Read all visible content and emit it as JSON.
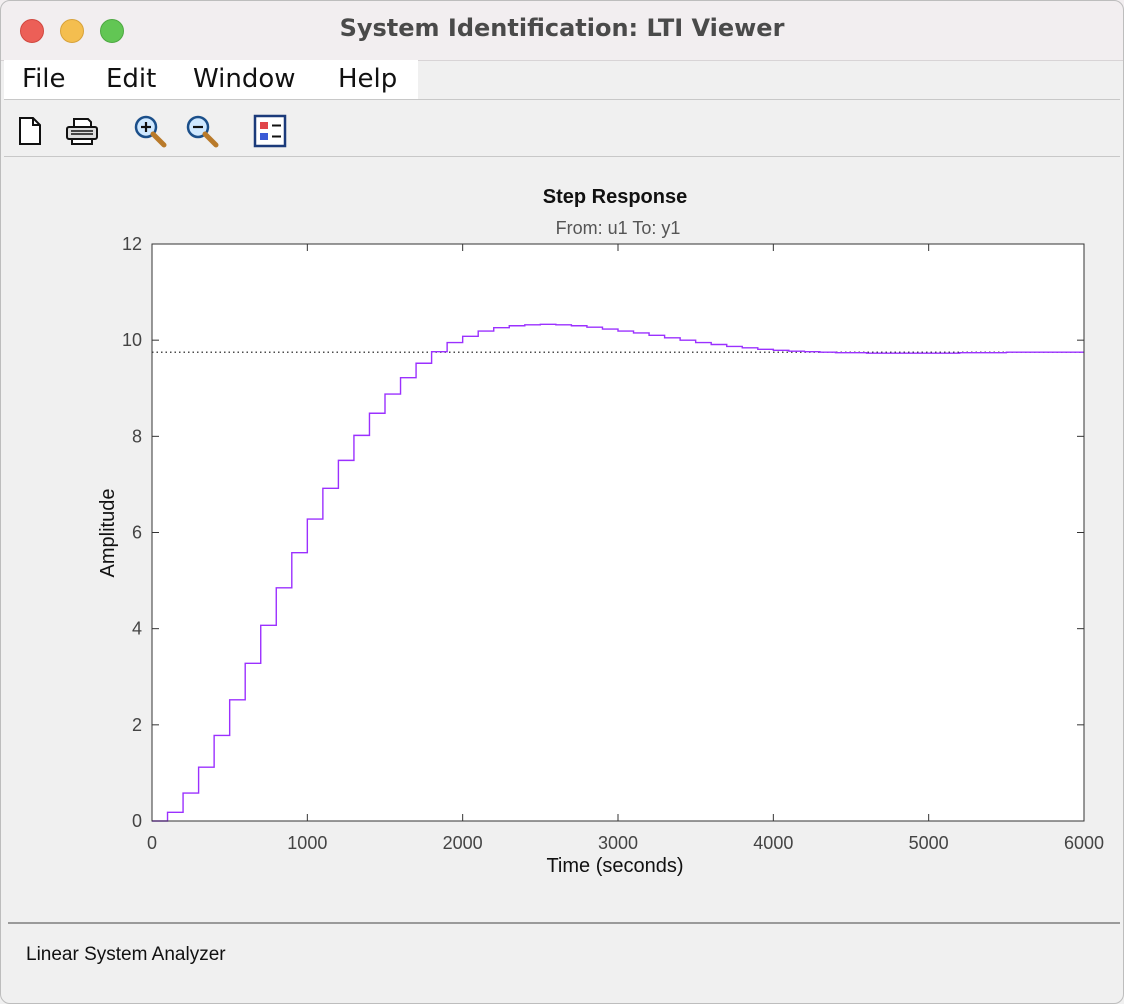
{
  "window": {
    "title": "System Identification: LTI Viewer"
  },
  "menu": {
    "file": "File",
    "edit": "Edit",
    "window": "Window",
    "help": "Help"
  },
  "toolbar": {
    "icons": [
      "new-document-icon",
      "print-icon",
      "zoom-in-icon",
      "zoom-out-icon",
      "legend-icon"
    ]
  },
  "plot": {
    "title": "Step Response",
    "subtitle": "From: u1  To: y1"
  },
  "status": {
    "text": "Linear System Analyzer"
  },
  "chart_data": {
    "type": "line",
    "style": "stairs",
    "title": "Step Response",
    "subtitle": "From: u1  To: y1",
    "xlabel": "Time (seconds)",
    "ylabel": "Amplitude",
    "xlim": [
      0,
      6000
    ],
    "ylim": [
      0,
      12
    ],
    "xticks": [
      "0",
      "1000",
      "2000",
      "3000",
      "4000",
      "5000",
      "6000"
    ],
    "yticks": [
      "0",
      "2",
      "4",
      "6",
      "8",
      "10",
      "12"
    ],
    "steady_state": 9.75,
    "series": [
      {
        "color": "#9b30ff",
        "x": [
          0,
          100,
          200,
          300,
          400,
          500,
          600,
          700,
          800,
          900,
          1000,
          1100,
          1200,
          1300,
          1400,
          1500,
          1600,
          1700,
          1800,
          1900,
          2000,
          2100,
          2200,
          2300,
          2400,
          2500,
          2600,
          2700,
          2800,
          2900,
          3000,
          3100,
          3200,
          3300,
          3400,
          3500,
          3600,
          3700,
          3800,
          3900,
          4000,
          4100,
          4200,
          4300,
          4400,
          4500,
          4600,
          4700,
          4800,
          4900,
          5000,
          5100,
          5200,
          5300,
          5400,
          5500,
          5600,
          5700,
          5800,
          5900,
          6000
        ],
        "y": [
          0,
          0.18,
          0.58,
          1.12,
          1.78,
          2.52,
          3.28,
          4.07,
          4.85,
          5.58,
          6.28,
          6.92,
          7.5,
          8.02,
          8.48,
          8.88,
          9.22,
          9.52,
          9.76,
          9.95,
          10.08,
          10.19,
          10.26,
          10.3,
          10.32,
          10.33,
          10.32,
          10.3,
          10.27,
          10.23,
          10.19,
          10.15,
          10.1,
          10.05,
          10.0,
          9.95,
          9.91,
          9.87,
          9.84,
          9.81,
          9.79,
          9.77,
          9.76,
          9.75,
          9.74,
          9.74,
          9.73,
          9.73,
          9.73,
          9.73,
          9.73,
          9.73,
          9.74,
          9.74,
          9.74,
          9.75,
          9.75,
          9.75,
          9.75,
          9.75,
          9.75
        ]
      }
    ]
  }
}
